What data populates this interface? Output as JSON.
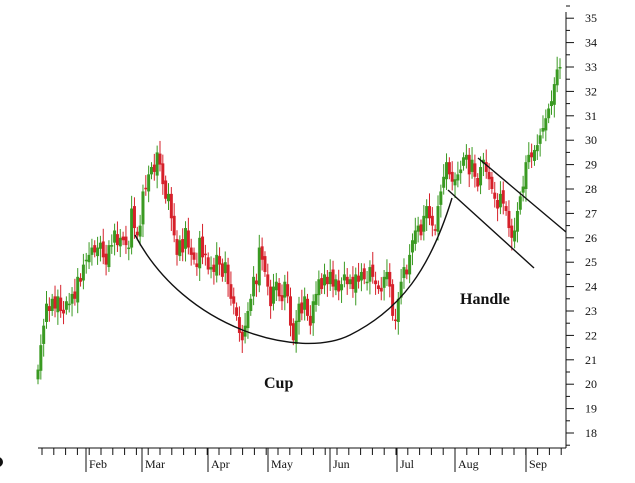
{
  "chart_data": {
    "type": "candlestick",
    "title": "",
    "xlabel": "",
    "ylabel": "",
    "ylim": [
      17.5,
      35.5
    ],
    "y_ticks": [
      18,
      19,
      20,
      21,
      22,
      23,
      24,
      25,
      26,
      27,
      28,
      29,
      30,
      31,
      32,
      33,
      34,
      35
    ],
    "x_ticks": [
      "Feb",
      "Mar",
      "Apr",
      "May",
      "Jun",
      "Jul",
      "Aug",
      "Sep"
    ],
    "y_axis_side": "right",
    "grid": false,
    "colors": {
      "up": "#3a9a22",
      "down": "#d6202a",
      "annotation": "#111111"
    },
    "closes": [
      20.6,
      21.6,
      22.4,
      23.3,
      23.0,
      23.5,
      23.1,
      23.6,
      23.0,
      22.9,
      23.4,
      23.3,
      23.7,
      23.5,
      24.4,
      24.2,
      24.9,
      25.1,
      25.3,
      25.6,
      25.4,
      25.6,
      25.8,
      25.2,
      24.9,
      25.7,
      25.7,
      26.3,
      25.7,
      26.0,
      25.9,
      25.7,
      25.6,
      27.2,
      26.4,
      26.1,
      26.5,
      27.9,
      28.0,
      28.6,
      28.9,
      28.7,
      29.5,
      29.0,
      28.2,
      27.6,
      27.8,
      26.8,
      26.1,
      25.3,
      25.9,
      25.4,
      26.4,
      25.6,
      25.3,
      25.1,
      24.8,
      26.0,
      25.2,
      25.3,
      24.7,
      24.8,
      24.6,
      25.3,
      24.9,
      24.4,
      25.0,
      24.1,
      23.5,
      23.3,
      22.8,
      22.1,
      21.8,
      22.4,
      23.0,
      23.5,
      24.4,
      24.1,
      25.6,
      25.1,
      24.6,
      24.0,
      23.2,
      24.0,
      24.2,
      23.6,
      23.4,
      24.2,
      23.6,
      22.4,
      21.8,
      22.6,
      23.3,
      22.9,
      23.6,
      22.8,
      22.4,
      23.4,
      23.7,
      24.3,
      23.9,
      24.5,
      24.1,
      24.6,
      24.0,
      24.3,
      23.8,
      24.1,
      24.5,
      24.1,
      24.3,
      23.9,
      24.5,
      24.2,
      24.6,
      24.3,
      24.2,
      24.8,
      24.4,
      24.1,
      23.9,
      23.8,
      24.4,
      24.6,
      24.0,
      22.8,
      22.6,
      23.5,
      24.2,
      24.8,
      24.5,
      25.3,
      25.9,
      26.3,
      26.5,
      26.1,
      26.9,
      27.3,
      26.8,
      26.5,
      26.3,
      27.3,
      27.9,
      28.5,
      29.1,
      28.6,
      28.3,
      28.4,
      28.6,
      28.8,
      29.3,
      29.4,
      28.6,
      29.2,
      28.5,
      28.1,
      28.9,
      29.2,
      28.7,
      28.4,
      28.0,
      27.6,
      27.2,
      27.8,
      27.4,
      27.1,
      26.4,
      26.0,
      26.3,
      27.1,
      27.7,
      28.1,
      29.1,
      29.4,
      29.3,
      29.6,
      29.8,
      30.2,
      30.5,
      30.9,
      31.3,
      31.6,
      32.3,
      32.9,
      33.0
    ]
  },
  "annotations": {
    "cup": "Cup",
    "handle": "Handle"
  }
}
